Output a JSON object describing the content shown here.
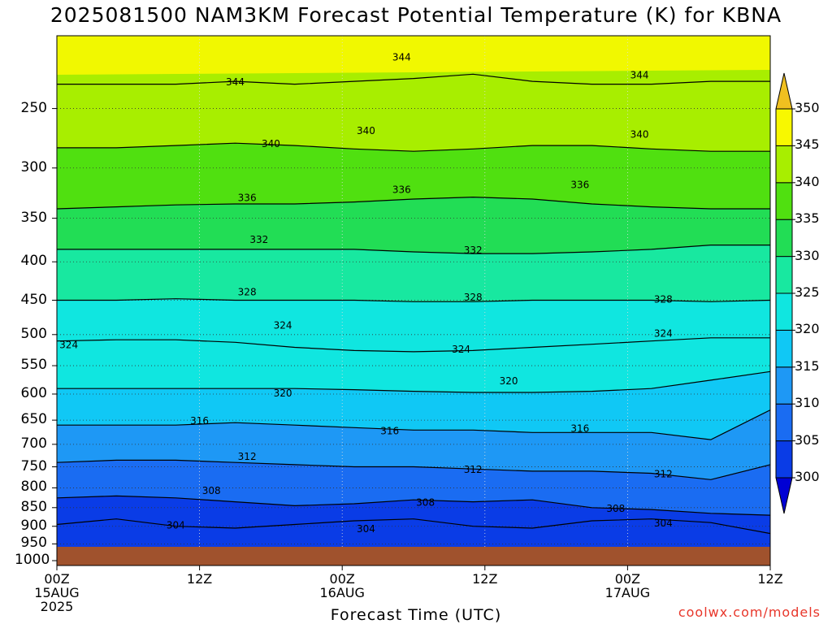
{
  "title": "2025081500 NAM3KM Forecast Potential Temperature (K) for KBNA",
  "credit": "coolwx.com/models",
  "chart_data": {
    "type": "heatmap",
    "title": "2025081500 NAM3KM Forecast Potential Temperature (K) for KBNA",
    "xlabel": "Forecast Time (UTC)",
    "ylabel": "",
    "x_ticks": [
      {
        "hour": 0,
        "lines": [
          "00Z",
          "15AUG",
          "2025"
        ]
      },
      {
        "hour": 12,
        "lines": [
          "12Z"
        ]
      },
      {
        "hour": 24,
        "lines": [
          "00Z",
          "16AUG"
        ]
      },
      {
        "hour": 36,
        "lines": [
          "12Z"
        ]
      },
      {
        "hour": 48,
        "lines": [
          "00Z",
          "17AUG"
        ]
      },
      {
        "hour": 60,
        "lines": [
          "12Z"
        ]
      }
    ],
    "xlim": [
      0,
      60
    ],
    "y_ticks": [
      250,
      300,
      350,
      400,
      450,
      500,
      550,
      600,
      650,
      700,
      750,
      800,
      850,
      900,
      950,
      1000
    ],
    "ylim_hPa": [
      200,
      1015
    ],
    "y_scale": "log-pressure (inverted)",
    "grid": true,
    "colorbar": {
      "levels": [
        300,
        305,
        310,
        315,
        320,
        325,
        330,
        335,
        340,
        345,
        350
      ],
      "colors": [
        "#0000d4",
        "#0a3ce6",
        "#1a6cf2",
        "#1e98f5",
        "#10c8f5",
        "#10e6e0",
        "#18e8a0",
        "#22dd55",
        "#50e010",
        "#a8ee00",
        "#f8f800",
        "#f0c020"
      ]
    },
    "contour_levels": [
      304,
      308,
      312,
      316,
      320,
      324,
      328,
      332,
      336,
      340,
      344
    ],
    "contours": [
      {
        "value": 304,
        "pressure": [
          895,
          880,
          900,
          905,
          895,
          885,
          880,
          900,
          905,
          885,
          880,
          890,
          920
        ]
      },
      {
        "value": 308,
        "pressure": [
          825,
          820,
          825,
          835,
          845,
          840,
          830,
          835,
          830,
          850,
          855,
          865,
          870
        ]
      },
      {
        "value": 312,
        "pressure": [
          740,
          735,
          735,
          740,
          745,
          750,
          750,
          755,
          760,
          760,
          765,
          780,
          745
        ]
      },
      {
        "value": 316,
        "pressure": [
          660,
          660,
          660,
          655,
          660,
          665,
          670,
          670,
          675,
          675,
          675,
          690,
          630
        ]
      },
      {
        "value": 320,
        "pressure": [
          590,
          590,
          590,
          590,
          590,
          592,
          595,
          597,
          597,
          595,
          590,
          575,
          560
        ]
      },
      {
        "value": 324,
        "pressure": [
          510,
          508,
          508,
          512,
          520,
          525,
          527,
          525,
          520,
          515,
          510,
          505,
          505
        ]
      },
      {
        "value": 328,
        "pressure": [
          450,
          450,
          448,
          450,
          450,
          450,
          452,
          452,
          450,
          450,
          450,
          452,
          450
        ]
      },
      {
        "value": 332,
        "pressure": [
          385,
          385,
          385,
          385,
          385,
          385,
          388,
          390,
          390,
          388,
          385,
          380,
          380
        ]
      },
      {
        "value": 336,
        "pressure": [
          340,
          338,
          336,
          335,
          335,
          333,
          330,
          328,
          330,
          335,
          338,
          340,
          340
        ]
      },
      {
        "value": 340,
        "pressure": [
          282,
          282,
          280,
          278,
          280,
          283,
          285,
          283,
          280,
          280,
          283,
          285,
          285
        ]
      },
      {
        "value": 344,
        "pressure": [
          232,
          232,
          232,
          230,
          232,
          230,
          228,
          225,
          230,
          232,
          232,
          230,
          230
        ]
      }
    ],
    "contour_hours": [
      0,
      5,
      10,
      15,
      20,
      25,
      30,
      35,
      40,
      45,
      50,
      55,
      60
    ],
    "labels": [
      {
        "text": "304",
        "hour": 10,
        "pressure": 895
      },
      {
        "text": "304",
        "hour": 26,
        "pressure": 905
      },
      {
        "text": "304",
        "hour": 51,
        "pressure": 890
      },
      {
        "text": "308",
        "hour": 13,
        "pressure": 805
      },
      {
        "text": "308",
        "hour": 31,
        "pressure": 835
      },
      {
        "text": "308",
        "hour": 47,
        "pressure": 850
      },
      {
        "text": "312",
        "hour": 16,
        "pressure": 725
      },
      {
        "text": "312",
        "hour": 35,
        "pressure": 755
      },
      {
        "text": "312",
        "hour": 51,
        "pressure": 765
      },
      {
        "text": "316",
        "hour": 12,
        "pressure": 650
      },
      {
        "text": "316",
        "hour": 28,
        "pressure": 670
      },
      {
        "text": "316",
        "hour": 44,
        "pressure": 665
      },
      {
        "text": "320",
        "hour": 19,
        "pressure": 597
      },
      {
        "text": "320",
        "hour": 38,
        "pressure": 575
      },
      {
        "text": "324",
        "hour": 1,
        "pressure": 515
      },
      {
        "text": "324",
        "hour": 19,
        "pressure": 485
      },
      {
        "text": "324",
        "hour": 34,
        "pressure": 522
      },
      {
        "text": "324",
        "hour": 51,
        "pressure": 497
      },
      {
        "text": "328",
        "hour": 16,
        "pressure": 438
      },
      {
        "text": "328",
        "hour": 35,
        "pressure": 445
      },
      {
        "text": "328",
        "hour": 51,
        "pressure": 448
      },
      {
        "text": "332",
        "hour": 17,
        "pressure": 373
      },
      {
        "text": "332",
        "hour": 35,
        "pressure": 385
      },
      {
        "text": "336",
        "hour": 16,
        "pressure": 328
      },
      {
        "text": "336",
        "hour": 29,
        "pressure": 320
      },
      {
        "text": "336",
        "hour": 44,
        "pressure": 315
      },
      {
        "text": "340",
        "hour": 18,
        "pressure": 278
      },
      {
        "text": "340",
        "hour": 26,
        "pressure": 267
      },
      {
        "text": "340",
        "hour": 49,
        "pressure": 270
      },
      {
        "text": "344",
        "hour": 15,
        "pressure": 230
      },
      {
        "text": "344",
        "hour": 29,
        "pressure": 213
      },
      {
        "text": "344",
        "hour": 49,
        "pressure": 225
      }
    ]
  }
}
